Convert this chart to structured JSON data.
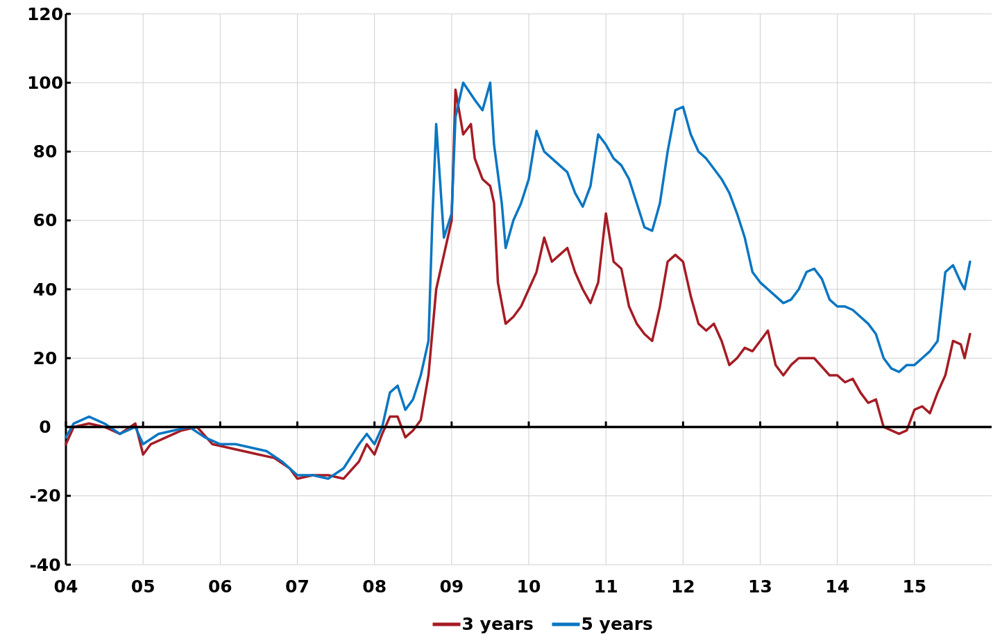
{
  "chart_data": {
    "type": "line",
    "xlim": [
      2004,
      2016
    ],
    "ylim": [
      -40,
      120
    ],
    "yticks": [
      -40,
      -20,
      0,
      20,
      40,
      60,
      80,
      100,
      120
    ],
    "xticks": [
      {
        "value": 2004,
        "label": "04"
      },
      {
        "value": 2005,
        "label": "05"
      },
      {
        "value": 2006,
        "label": "06"
      },
      {
        "value": 2007,
        "label": "07"
      },
      {
        "value": 2008,
        "label": "08"
      },
      {
        "value": 2009,
        "label": "09"
      },
      {
        "value": 2010,
        "label": "10"
      },
      {
        "value": 2011,
        "label": "11"
      },
      {
        "value": 2012,
        "label": "12"
      },
      {
        "value": 2013,
        "label": "13"
      },
      {
        "value": 2014,
        "label": "14"
      },
      {
        "value": 2015,
        "label": "15"
      }
    ],
    "grid": true,
    "legend": "bottom",
    "marker": "none",
    "line_style": "solid",
    "series": [
      {
        "name": "3 years",
        "color": "#a51c24",
        "x": [
          2004.0,
          2004.1,
          2004.3,
          2004.5,
          2004.7,
          2004.9,
          2005.0,
          2005.1,
          2005.3,
          2005.5,
          2005.7,
          2005.9,
          2006.1,
          2006.3,
          2006.5,
          2006.7,
          2006.9,
          2007.0,
          2007.2,
          2007.4,
          2007.6,
          2007.8,
          2007.9,
          2008.0,
          2008.1,
          2008.2,
          2008.3,
          2008.4,
          2008.5,
          2008.6,
          2008.7,
          2008.8,
          2008.9,
          2009.0,
          2009.05,
          2009.15,
          2009.25,
          2009.3,
          2009.4,
          2009.5,
          2009.55,
          2009.6,
          2009.7,
          2009.8,
          2009.9,
          2010.0,
          2010.1,
          2010.2,
          2010.3,
          2010.4,
          2010.5,
          2010.6,
          2010.7,
          2010.8,
          2010.9,
          2011.0,
          2011.1,
          2011.2,
          2011.3,
          2011.4,
          2011.5,
          2011.6,
          2011.7,
          2011.8,
          2011.9,
          2012.0,
          2012.1,
          2012.2,
          2012.3,
          2012.4,
          2012.5,
          2012.6,
          2012.7,
          2012.8,
          2012.9,
          2013.0,
          2013.1,
          2013.2,
          2013.3,
          2013.4,
          2013.5,
          2013.7,
          2013.9,
          2014.0,
          2014.1,
          2014.2,
          2014.3,
          2014.4,
          2014.5,
          2014.6,
          2014.7,
          2014.8,
          2014.9,
          2015.0,
          2015.1,
          2015.2,
          2015.3,
          2015.4,
          2015.5,
          2015.6,
          2015.65,
          2015.72
        ],
        "values": [
          -5,
          0,
          1,
          0,
          -2,
          1,
          -8,
          -5,
          -3,
          -1,
          0,
          -5,
          -6,
          -7,
          -8,
          -9,
          -12,
          -15,
          -14,
          -14,
          -15,
          -10,
          -5,
          -8,
          -2,
          3,
          3,
          -3,
          -1,
          2,
          15,
          40,
          50,
          60,
          98,
          85,
          88,
          78,
          72,
          70,
          65,
          42,
          30,
          32,
          35,
          40,
          45,
          55,
          48,
          50,
          52,
          45,
          40,
          36,
          42,
          62,
          48,
          46,
          35,
          30,
          27,
          25,
          35,
          48,
          50,
          48,
          38,
          30,
          28,
          30,
          25,
          18,
          20,
          23,
          22,
          25,
          28,
          18,
          15,
          18,
          20,
          20,
          15,
          15,
          13,
          14,
          10,
          7,
          8,
          0,
          -1,
          -2,
          -1,
          5,
          6,
          4,
          10,
          15,
          25,
          24,
          20,
          27
        ]
      },
      {
        "name": "5 years",
        "color": "#0a76c2",
        "x": [
          2004.0,
          2004.1,
          2004.3,
          2004.5,
          2004.7,
          2004.9,
          2005.0,
          2005.2,
          2005.4,
          2005.6,
          2005.8,
          2006.0,
          2006.2,
          2006.4,
          2006.6,
          2006.8,
          2007.0,
          2007.2,
          2007.4,
          2007.6,
          2007.8,
          2007.9,
          2008.0,
          2008.1,
          2008.2,
          2008.3,
          2008.4,
          2008.5,
          2008.6,
          2008.7,
          2008.75,
          2008.8,
          2008.9,
          2009.0,
          2009.05,
          2009.15,
          2009.3,
          2009.4,
          2009.5,
          2009.55,
          2009.65,
          2009.7,
          2009.8,
          2009.9,
          2010.0,
          2010.1,
          2010.2,
          2010.3,
          2010.4,
          2010.5,
          2010.6,
          2010.7,
          2010.8,
          2010.9,
          2011.0,
          2011.1,
          2011.2,
          2011.3,
          2011.4,
          2011.5,
          2011.6,
          2011.7,
          2011.8,
          2011.9,
          2012.0,
          2012.1,
          2012.2,
          2012.3,
          2012.4,
          2012.5,
          2012.6,
          2012.7,
          2012.8,
          2012.9,
          2013.0,
          2013.1,
          2013.2,
          2013.3,
          2013.4,
          2013.5,
          2013.6,
          2013.7,
          2013.8,
          2013.9,
          2014.0,
          2014.1,
          2014.2,
          2014.3,
          2014.4,
          2014.5,
          2014.6,
          2014.7,
          2014.8,
          2014.9,
          2015.0,
          2015.1,
          2015.2,
          2015.3,
          2015.4,
          2015.5,
          2015.6,
          2015.65,
          2015.72
        ],
        "values": [
          -3,
          1,
          3,
          1,
          -2,
          0,
          -5,
          -2,
          -1,
          0,
          -3,
          -5,
          -5,
          -6,
          -7,
          -10,
          -14,
          -14,
          -15,
          -12,
          -5,
          -2,
          -5,
          0,
          10,
          12,
          5,
          8,
          15,
          25,
          60,
          88,
          55,
          62,
          90,
          100,
          95,
          92,
          100,
          82,
          65,
          52,
          60,
          65,
          72,
          86,
          80,
          78,
          76,
          74,
          68,
          64,
          70,
          85,
          82,
          78,
          76,
          72,
          65,
          58,
          57,
          65,
          80,
          92,
          93,
          85,
          80,
          78,
          75,
          72,
          68,
          62,
          55,
          45,
          42,
          40,
          38,
          36,
          37,
          40,
          45,
          46,
          43,
          37,
          35,
          35,
          34,
          32,
          30,
          27,
          20,
          17,
          16,
          18,
          18,
          20,
          22,
          25,
          45,
          47,
          42,
          40,
          48
        ]
      }
    ]
  }
}
